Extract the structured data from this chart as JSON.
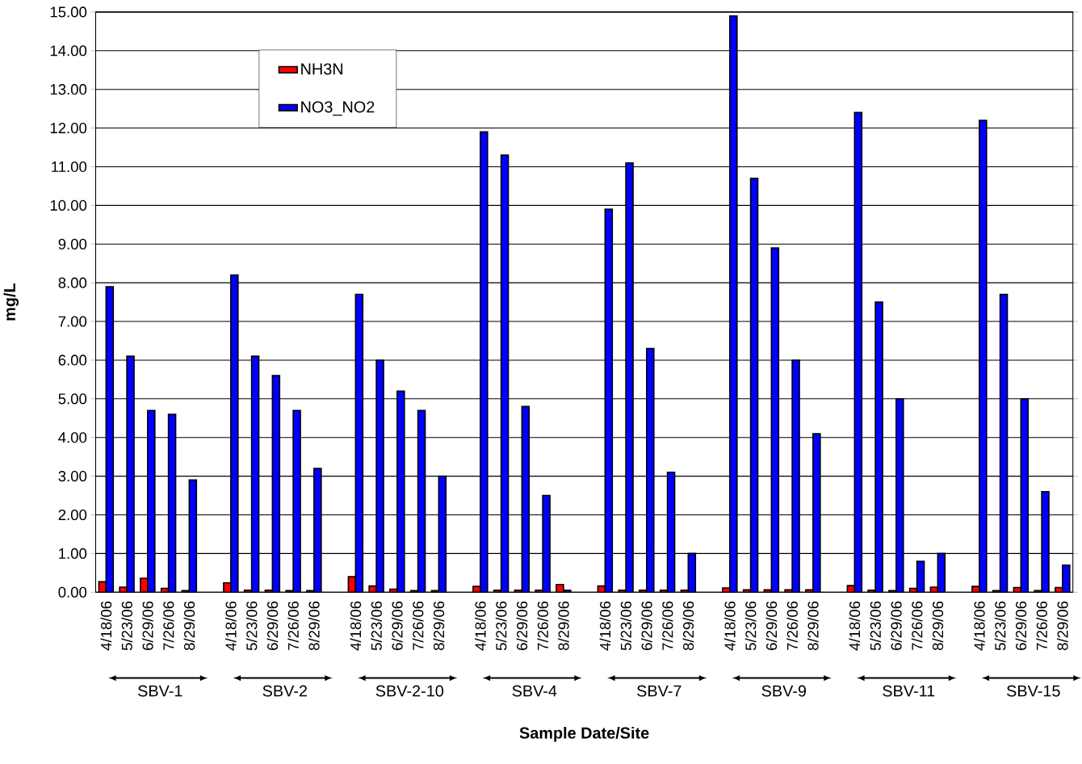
{
  "chart_data": {
    "type": "bar",
    "xlabel": "Sample Date/Site",
    "ylabel": "mg/L",
    "categories": [
      "4/18/06",
      "5/23/06",
      "6/29/06",
      "7/26/06",
      "8/29/06",
      null,
      "4/18/06",
      "5/23/06",
      "6/29/06",
      "7/26/06",
      "8/29/06",
      null,
      "4/18/06",
      "5/23/06",
      "6/29/06",
      "7/26/06",
      "8/29/06",
      null,
      "4/18/06",
      "5/23/06",
      "6/29/06",
      "7/26/06",
      "8/29/06",
      null,
      "4/18/06",
      "5/23/06",
      "6/29/06",
      "7/26/06",
      "8/29/06",
      null,
      "4/18/06",
      "5/23/06",
      "6/29/06",
      "7/26/06",
      "8/29/06",
      null,
      "4/18/06",
      "5/23/06",
      "6/29/06",
      "7/26/06",
      "8/29/06",
      null,
      "4/18/06",
      "5/23/06",
      "6/29/06",
      "7/26/06",
      "8/29/06"
    ],
    "series": [
      {
        "name": "NH3N",
        "color": "#ff0000",
        "values": [
          0.27,
          0.13,
          0.36,
          0.1,
          0.04,
          null,
          0.24,
          0.05,
          0.05,
          0.04,
          0.04,
          null,
          0.4,
          0.16,
          0.08,
          0.04,
          0.04,
          null,
          0.15,
          0.05,
          0.05,
          0.05,
          0.2,
          null,
          0.16,
          0.05,
          0.05,
          0.05,
          0.05,
          null,
          0.11,
          0.06,
          0.06,
          0.06,
          0.06,
          null,
          0.17,
          0.05,
          0.04,
          0.1,
          0.13,
          null,
          0.15,
          0.04,
          0.12,
          0.04,
          0.12
        ]
      },
      {
        "name": "NO3_NO2",
        "color": "#0000ff",
        "values": [
          7.9,
          6.1,
          4.7,
          4.6,
          2.9,
          null,
          8.2,
          6.1,
          5.6,
          4.7,
          3.2,
          null,
          7.7,
          6.0,
          5.2,
          4.7,
          3.0,
          null,
          11.9,
          11.3,
          4.8,
          2.5,
          0.05,
          null,
          9.9,
          11.1,
          6.3,
          3.1,
          1.0,
          null,
          14.9,
          10.7,
          8.9,
          6.0,
          4.1,
          null,
          12.4,
          7.5,
          5.0,
          0.8,
          1.0,
          null,
          12.2,
          7.7,
          5.0,
          2.6,
          0.7
        ]
      }
    ],
    "annotations": [
      "SBV-1",
      "SBV-2",
      "SBV-2-10",
      "SBV-4",
      "SBV-7",
      "SBV-9",
      "SBV-11",
      "SBV-15"
    ],
    "ylim": [
      0,
      15
    ],
    "yticks": [
      {
        "value": 0,
        "label": "0.00"
      },
      {
        "value": 1,
        "label": "1.00"
      },
      {
        "value": 2,
        "label": "2.00"
      },
      {
        "value": 3,
        "label": "3.00"
      },
      {
        "value": 4,
        "label": "4.00"
      },
      {
        "value": 5,
        "label": "5.00"
      },
      {
        "value": 6,
        "label": "6.00"
      },
      {
        "value": 7,
        "label": "7.00"
      },
      {
        "value": 8,
        "label": "8.00"
      },
      {
        "value": 9,
        "label": "9.00"
      },
      {
        "value": 10,
        "label": "10.00"
      },
      {
        "value": 11,
        "label": "11.00"
      },
      {
        "value": 12,
        "label": "12.00"
      },
      {
        "value": 13,
        "label": "13.00"
      },
      {
        "value": 14,
        "label": "14.00"
      },
      {
        "value": 15,
        "label": "15.00"
      }
    ],
    "grid": "y",
    "legend": "top left"
  }
}
